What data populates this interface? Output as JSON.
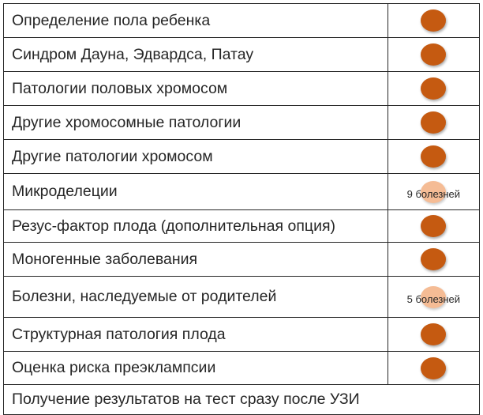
{
  "rows": [
    {
      "label": "Определение пола ребенка",
      "dot": "dark",
      "note": ""
    },
    {
      "label": "Синдром Дауна, Эдвардса, Патау",
      "dot": "dark",
      "note": ""
    },
    {
      "label": "Патологии половых хромосом",
      "dot": "dark",
      "note": ""
    },
    {
      "label": "Другие хромосомные патологии",
      "dot": "dark",
      "note": ""
    },
    {
      "label": "Другие патологии хромосом",
      "dot": "dark",
      "note": ""
    },
    {
      "label": "Микроделеции",
      "dot": "light",
      "note": "9 болезней"
    },
    {
      "label": "Резус-фактор плода (дополнительная опция)",
      "dot": "dark",
      "note": ""
    },
    {
      "label": "Моногенные заболевания",
      "dot": "dark",
      "note": ""
    },
    {
      "label": "Болезни, наследуемые от родителей",
      "dot": "light",
      "note": "5 болезней"
    },
    {
      "label": "Структурная патология плода",
      "dot": "dark",
      "note": ""
    },
    {
      "label": "Оценка риска преэклампсии",
      "dot": "dark",
      "note": ""
    }
  ],
  "footer": {
    "label": "Получение результатов на тест сразу после УЗИ"
  },
  "colors": {
    "dot_dark": "#c55a11",
    "dot_light": "#f4b183",
    "border": "#262626"
  }
}
